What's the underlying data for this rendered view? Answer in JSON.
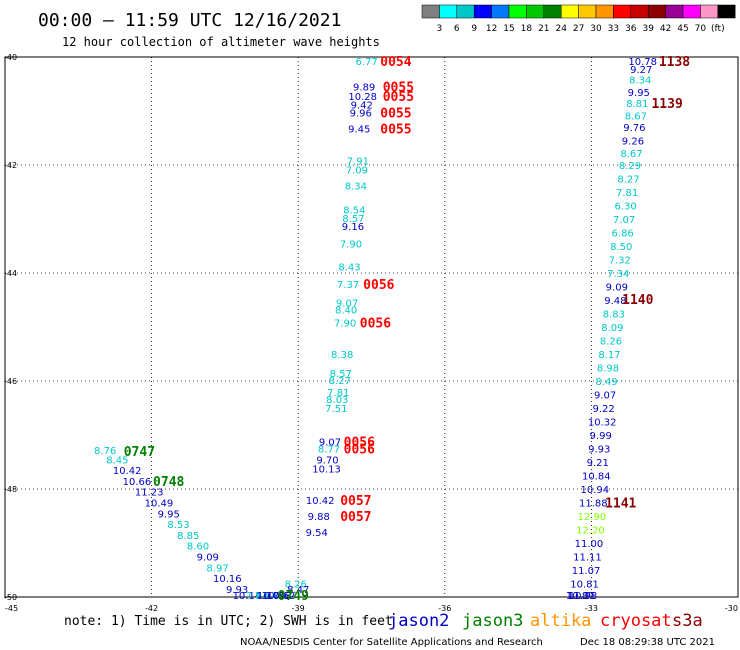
{
  "header": {
    "title": "00:00 – 11:59 UTC 12/16/2021",
    "subtitle": "12 hour collection of altimeter wave heights"
  },
  "legend_scale": {
    "colors": [
      "#808080",
      "#00ffff",
      "#00c8c8",
      "#0000ff",
      "#0078ff",
      "#00ff00",
      "#00c800",
      "#008000",
      "#ffff00",
      "#ffc800",
      "#ff9600",
      "#ff0000",
      "#c80000",
      "#8b0000",
      "#960096",
      "#ff00ff",
      "#ff96c8",
      "#000000"
    ],
    "labels": [
      "3",
      "6",
      "9",
      "12",
      "15",
      "18",
      "21",
      "24",
      "27",
      "30",
      "33",
      "36",
      "39",
      "42",
      "45",
      "70",
      "(ft)"
    ]
  },
  "axes": {
    "x_ticks": [
      "-45",
      "-42",
      "-39",
      "-36",
      "-33",
      "-30"
    ],
    "y_ticks": [
      "-40",
      "-42",
      "-44",
      "-46",
      "-48",
      "-50"
    ]
  },
  "map_data": {
    "lon_range": [
      -45,
      -30
    ],
    "lat_range": [
      -50,
      -40
    ],
    "points": [
      {
        "lon": -42.95,
        "lat": -47.28,
        "v": "8.76",
        "c": "c"
      },
      {
        "lon": -42.7,
        "lat": -47.45,
        "v": "8.45",
        "c": "c"
      },
      {
        "lon": -42.5,
        "lat": -47.65,
        "v": "10.42",
        "c": "b"
      },
      {
        "lon": -42.3,
        "lat": -47.85,
        "v": "10.66",
        "c": "b"
      },
      {
        "lon": -42.05,
        "lat": -48.05,
        "v": "11.23",
        "c": "b"
      },
      {
        "lon": -41.85,
        "lat": -48.25,
        "v": "10.49",
        "c": "b"
      },
      {
        "lon": -41.65,
        "lat": -48.45,
        "v": "9.95",
        "c": "b"
      },
      {
        "lon": -41.45,
        "lat": -48.65,
        "v": "8.53",
        "c": "c"
      },
      {
        "lon": -41.25,
        "lat": -48.85,
        "v": "8.85",
        "c": "c"
      },
      {
        "lon": -41.05,
        "lat": -49.05,
        "v": "8.60",
        "c": "c"
      },
      {
        "lon": -40.85,
        "lat": -49.25,
        "v": "9.09",
        "c": "b"
      },
      {
        "lon": -40.65,
        "lat": -49.45,
        "v": "8.97",
        "c": "c"
      },
      {
        "lon": -40.45,
        "lat": -49.65,
        "v": "10.16",
        "c": "b"
      },
      {
        "lon": -40.25,
        "lat": -49.85,
        "v": "9.93",
        "c": "b"
      },
      {
        "lon": -40.05,
        "lat": -50.05,
        "v": "10.14",
        "c": "b"
      },
      {
        "lon": -39.85,
        "lat": -50.25,
        "v": "7.73",
        "c": "c"
      },
      {
        "lon": -39.65,
        "lat": -50.45,
        "v": "8.84",
        "c": "c"
      },
      {
        "lon": -39.55,
        "lat": -50.55,
        "v": "10.79",
        "c": "b"
      },
      {
        "lon": -39.45,
        "lat": -50.65,
        "v": "10.36",
        "c": "b"
      },
      {
        "lon": -39.35,
        "lat": -50.8,
        "v": "10.62",
        "c": "b"
      },
      {
        "lon": -39.05,
        "lat": -49.75,
        "v": "8.26",
        "c": "c"
      },
      {
        "lon": -39.0,
        "lat": -49.85,
        "v": "8.47",
        "c": "b"
      },
      {
        "lon": -37.6,
        "lat": -40.05,
        "v": "6.77",
        "c": "c"
      },
      {
        "lon": -37.65,
        "lat": -40.55,
        "v": "9.89",
        "c": "b"
      },
      {
        "lon": -37.68,
        "lat": -40.72,
        "v": "10.28",
        "c": "b"
      },
      {
        "lon": -37.7,
        "lat": -40.88,
        "v": "9.42",
        "c": "b"
      },
      {
        "lon": -37.72,
        "lat": -41.03,
        "v": "9.96",
        "c": "b"
      },
      {
        "lon": -37.75,
        "lat": -41.32,
        "v": "9.45",
        "c": "b"
      },
      {
        "lon": -37.78,
        "lat": -41.92,
        "v": "7.91",
        "c": "c"
      },
      {
        "lon": -37.8,
        "lat": -42.08,
        "v": "7.09",
        "c": "c"
      },
      {
        "lon": -37.82,
        "lat": -42.38,
        "v": "8.34",
        "c": "c"
      },
      {
        "lon": -37.85,
        "lat": -42.82,
        "v": "8.54",
        "c": "c"
      },
      {
        "lon": -37.87,
        "lat": -42.98,
        "v": "8.57",
        "c": "c"
      },
      {
        "lon": -37.88,
        "lat": -43.13,
        "v": "9.16",
        "c": "b"
      },
      {
        "lon": -37.92,
        "lat": -43.45,
        "v": "7.90",
        "c": "c"
      },
      {
        "lon": -37.95,
        "lat": -43.88,
        "v": "8.43",
        "c": "c"
      },
      {
        "lon": -37.98,
        "lat": -44.2,
        "v": "7.37",
        "c": "c"
      },
      {
        "lon": -38.0,
        "lat": -44.55,
        "v": "9.07",
        "c": "c"
      },
      {
        "lon": -38.02,
        "lat": -44.68,
        "v": "8.40",
        "c": "c"
      },
      {
        "lon": -38.04,
        "lat": -44.92,
        "v": "7.90",
        "c": "c"
      },
      {
        "lon": -38.1,
        "lat": -45.5,
        "v": "8.38",
        "c": "c"
      },
      {
        "lon": -38.13,
        "lat": -45.85,
        "v": "8.57",
        "c": "c"
      },
      {
        "lon": -38.15,
        "lat": -45.98,
        "v": "8.27",
        "c": "c"
      },
      {
        "lon": -38.18,
        "lat": -46.2,
        "v": "7.81",
        "c": "c"
      },
      {
        "lon": -38.2,
        "lat": -46.33,
        "v": "8.03",
        "c": "c"
      },
      {
        "lon": -38.22,
        "lat": -46.5,
        "v": "7.51",
        "c": "c"
      },
      {
        "lon": -38.35,
        "lat": -47.12,
        "v": "9.07",
        "c": "b"
      },
      {
        "lon": -38.37,
        "lat": -47.25,
        "v": "8.77",
        "c": "c"
      },
      {
        "lon": -38.4,
        "lat": -47.45,
        "v": "9.70",
        "c": "b"
      },
      {
        "lon": -38.42,
        "lat": -47.62,
        "v": "10.13",
        "c": "b"
      },
      {
        "lon": -38.55,
        "lat": -48.2,
        "v": "10.42",
        "c": "b"
      },
      {
        "lon": -38.58,
        "lat": -48.5,
        "v": "9.88",
        "c": "b"
      },
      {
        "lon": -38.62,
        "lat": -48.8,
        "v": "9.54",
        "c": "b"
      },
      {
        "lon": -31.95,
        "lat": -40.05,
        "v": "10.78",
        "c": "b"
      },
      {
        "lon": -31.98,
        "lat": -40.22,
        "v": "9.27",
        "c": "b"
      },
      {
        "lon": -32.0,
        "lat": -40.42,
        "v": "8.34",
        "c": "c"
      },
      {
        "lon": -32.03,
        "lat": -40.65,
        "v": "9.95",
        "c": "b"
      },
      {
        "lon": -32.06,
        "lat": -40.85,
        "v": "8.81",
        "c": "c"
      },
      {
        "lon": -32.09,
        "lat": -41.08,
        "v": "8.67",
        "c": "c"
      },
      {
        "lon": -32.12,
        "lat": -41.3,
        "v": "9.76",
        "c": "b"
      },
      {
        "lon": -32.15,
        "lat": -41.55,
        "v": "9.26",
        "c": "b"
      },
      {
        "lon": -32.18,
        "lat": -41.78,
        "v": "8.67",
        "c": "c"
      },
      {
        "lon": -32.21,
        "lat": -42.0,
        "v": "8.29",
        "c": "c"
      },
      {
        "lon": -32.24,
        "lat": -42.25,
        "v": "8.27",
        "c": "c"
      },
      {
        "lon": -32.27,
        "lat": -42.5,
        "v": "7.81",
        "c": "c"
      },
      {
        "lon": -32.3,
        "lat": -42.75,
        "v": "6.30",
        "c": "c"
      },
      {
        "lon": -32.33,
        "lat": -43.0,
        "v": "7.07",
        "c": "c"
      },
      {
        "lon": -32.36,
        "lat": -43.25,
        "v": "6.86",
        "c": "c"
      },
      {
        "lon": -32.39,
        "lat": -43.5,
        "v": "8.50",
        "c": "c"
      },
      {
        "lon": -32.42,
        "lat": -43.75,
        "v": "7.32",
        "c": "c"
      },
      {
        "lon": -32.45,
        "lat": -44.0,
        "v": "7.34",
        "c": "c"
      },
      {
        "lon": -32.48,
        "lat": -44.25,
        "v": "9.09",
        "c": "b"
      },
      {
        "lon": -32.51,
        "lat": -44.5,
        "v": "9.48",
        "c": "b"
      },
      {
        "lon": -32.54,
        "lat": -44.75,
        "v": "8.83",
        "c": "c"
      },
      {
        "lon": -32.57,
        "lat": -45.0,
        "v": "8.09",
        "c": "c"
      },
      {
        "lon": -32.6,
        "lat": -45.25,
        "v": "8.26",
        "c": "c"
      },
      {
        "lon": -32.63,
        "lat": -45.5,
        "v": "8.17",
        "c": "c"
      },
      {
        "lon": -32.66,
        "lat": -45.75,
        "v": "8.98",
        "c": "c"
      },
      {
        "lon": -32.69,
        "lat": -46.0,
        "v": "8.49",
        "c": "c"
      },
      {
        "lon": -32.72,
        "lat": -46.25,
        "v": "9.07",
        "c": "b"
      },
      {
        "lon": -32.75,
        "lat": -46.5,
        "v": "9.22",
        "c": "b"
      },
      {
        "lon": -32.78,
        "lat": -46.75,
        "v": "10.32",
        "c": "b"
      },
      {
        "lon": -32.81,
        "lat": -47.0,
        "v": "9.99",
        "c": "b"
      },
      {
        "lon": -32.84,
        "lat": -47.25,
        "v": "9.93",
        "c": "b"
      },
      {
        "lon": -32.87,
        "lat": -47.5,
        "v": "9.21",
        "c": "b"
      },
      {
        "lon": -32.9,
        "lat": -47.75,
        "v": "10.84",
        "c": "b"
      },
      {
        "lon": -32.93,
        "lat": -48.0,
        "v": "10.94",
        "c": "b"
      },
      {
        "lon": -32.96,
        "lat": -48.25,
        "v": "11.88",
        "c": "b"
      },
      {
        "lon": -32.99,
        "lat": -48.5,
        "v": "12.90",
        "c": "g"
      },
      {
        "lon": -33.02,
        "lat": -48.75,
        "v": "12.20",
        "c": "g"
      },
      {
        "lon": -33.05,
        "lat": -49.0,
        "v": "11.00",
        "c": "b"
      },
      {
        "lon": -33.08,
        "lat": -49.25,
        "v": "11.11",
        "c": "b"
      },
      {
        "lon": -33.11,
        "lat": -49.5,
        "v": "11.07",
        "c": "b"
      },
      {
        "lon": -33.14,
        "lat": -49.75,
        "v": "10.81",
        "c": "b"
      },
      {
        "lon": -33.17,
        "lat": -50.0,
        "v": "10.93",
        "c": "b"
      },
      {
        "lon": -33.2,
        "lat": -50.25,
        "v": "11.21",
        "c": "b"
      },
      {
        "lon": -33.23,
        "lat": -50.5,
        "v": "10.87",
        "c": "b"
      }
    ],
    "time_labels": [
      {
        "lon": -42.25,
        "lat": -47.3,
        "t": "0747",
        "c": "#008000"
      },
      {
        "lon": -41.65,
        "lat": -47.85,
        "t": "0748",
        "c": "#008000"
      },
      {
        "lon": -39.1,
        "lat": -50.55,
        "t": "0749",
        "c": "#008000"
      },
      {
        "lon": -37.0,
        "lat": -40.05,
        "t": "0054",
        "c": "#ff0000"
      },
      {
        "lon": -36.95,
        "lat": -40.55,
        "t": "0055",
        "c": "#ff0000"
      },
      {
        "lon": -36.95,
        "lat": -40.72,
        "t": "0055",
        "c": "#ff0000"
      },
      {
        "lon": -37.0,
        "lat": -41.03,
        "t": "0055",
        "c": "#ff0000"
      },
      {
        "lon": -37.0,
        "lat": -41.32,
        "t": "0055",
        "c": "#ff0000"
      },
      {
        "lon": -37.35,
        "lat": -44.2,
        "t": "0056",
        "c": "#ff0000"
      },
      {
        "lon": -37.42,
        "lat": -44.92,
        "t": "0056",
        "c": "#ff0000"
      },
      {
        "lon": -37.75,
        "lat": -47.12,
        "t": "0056",
        "c": "#ff0000"
      },
      {
        "lon": -37.75,
        "lat": -47.25,
        "t": "0056",
        "c": "#ff0000"
      },
      {
        "lon": -37.82,
        "lat": -48.2,
        "t": "0057",
        "c": "#ff0000"
      },
      {
        "lon": -37.82,
        "lat": -48.5,
        "t": "0057",
        "c": "#ff0000"
      },
      {
        "lon": -31.3,
        "lat": -40.0,
        "t": "1138",
        "c": "#8b0000"
      },
      {
        "lon": -31.45,
        "lat": -40.85,
        "t": "1139",
        "c": "#8b0000"
      },
      {
        "lon": -32.05,
        "lat": -44.48,
        "t": "1140",
        "c": "#8b0000"
      },
      {
        "lon": -32.4,
        "lat": -48.25,
        "t": "1141",
        "c": "#8b0000"
      }
    ]
  },
  "footer": {
    "note": "note: 1) Time is in UTC; 2) SWH is in feet",
    "satellites": [
      {
        "name": "jason2",
        "color": "#0000c8"
      },
      {
        "name": "jason3",
        "color": "#008000"
      },
      {
        "name": "altika",
        "color": "#ff9600"
      },
      {
        "name": "cryosat",
        "color": "#ff0000"
      },
      {
        "name": "s3a",
        "color": "#8b0000"
      }
    ],
    "credit": "NOAA/NESDIS Center for Satellite Applications and Research",
    "timestamp": "Dec 18 08:29:38 UTC 2021"
  },
  "palette": {
    "b": "#0000c8",
    "c": "#00c8c8",
    "g": "#80ff00"
  }
}
